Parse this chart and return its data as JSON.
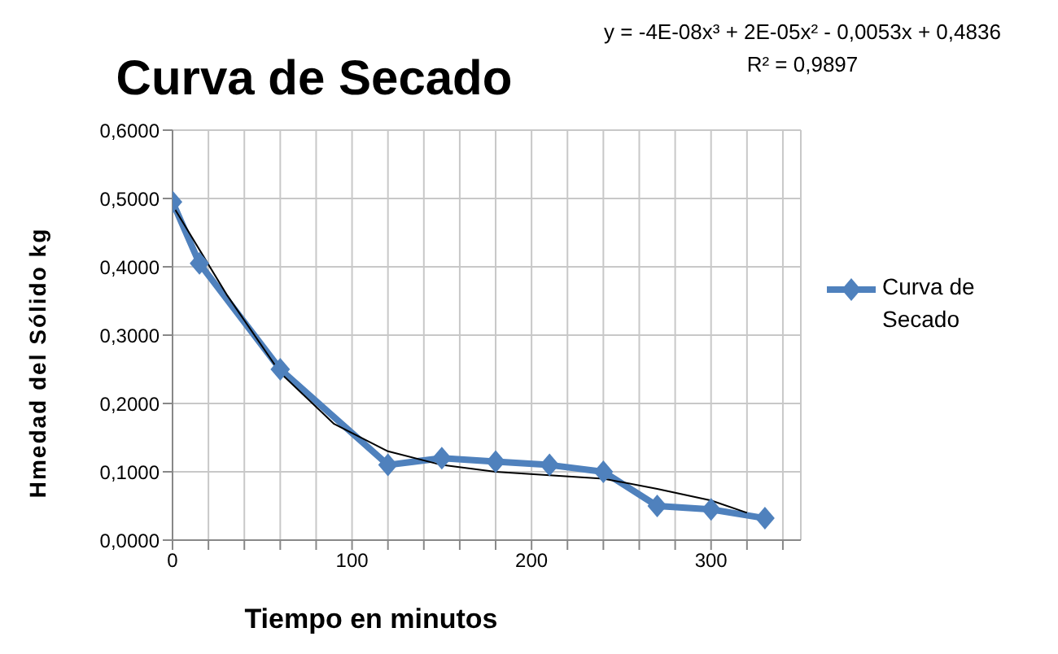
{
  "chart_data": {
    "type": "line",
    "title": "Curva de Secado",
    "xlabel": "Tiempo en  minutos",
    "ylabel": "Hmedad del Sólido  kg",
    "annotations": [
      "y = -4E-08x³ + 2E-05x² - 0,0053x + 0,4836",
      "R² = 0,9897"
    ],
    "x": [
      0,
      15,
      60,
      120,
      150,
      180,
      210,
      240,
      270,
      300,
      330
    ],
    "series": [
      {
        "name": "Curva de Secado",
        "color": "#4f81bd",
        "values": [
          0.495,
          0.405,
          0.25,
          0.11,
          0.12,
          0.115,
          0.11,
          0.1,
          0.05,
          0.045,
          0.032
        ],
        "marker": "diamond"
      },
      {
        "type": "line",
        "color": "#000000",
        "x": [
          0,
          30,
          60,
          90,
          120,
          150,
          180,
          210,
          240,
          270,
          300,
          320
        ],
        "values": [
          0.49,
          0.36,
          0.245,
          0.17,
          0.13,
          0.11,
          0.1,
          0.095,
          0.09,
          0.075,
          0.058,
          0.04
        ],
        "marker": "none"
      }
    ],
    "xlim": [
      0,
      350
    ],
    "xticks": [
      0,
      {
        "value": 20,
        "label": null
      },
      {
        "value": 40,
        "label": null
      },
      {
        "value": 60,
        "label": null
      },
      {
        "value": 80,
        "label": null
      },
      100,
      {
        "value": 120,
        "label": null
      },
      {
        "value": 140,
        "label": null
      },
      {
        "value": 160,
        "label": null
      },
      {
        "value": 180,
        "label": null
      },
      200,
      {
        "value": 220,
        "label": null
      },
      {
        "value": 240,
        "label": null
      },
      {
        "value": 260,
        "label": null
      },
      {
        "value": 280,
        "label": null
      },
      300,
      {
        "value": 320,
        "label": null
      },
      {
        "value": 340,
        "label": null
      }
    ],
    "ylim": [
      0,
      0.6
    ],
    "yticks": [
      {
        "value": 0,
        "label": "0,0000"
      },
      {
        "value": 0.1,
        "label": "0,1000"
      },
      {
        "value": 0.2,
        "label": "0,2000"
      },
      {
        "value": 0.3,
        "label": "0,3000"
      },
      {
        "value": 0.4,
        "label": "0,4000"
      },
      {
        "value": 0.5,
        "label": "0,5000"
      },
      {
        "value": 0.6,
        "label": "0,6000"
      }
    ],
    "grid": true,
    "legend": "right"
  }
}
